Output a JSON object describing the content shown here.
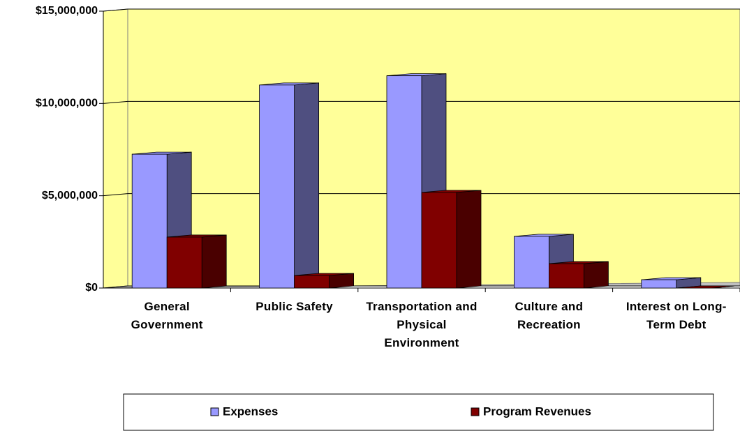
{
  "chart_data": {
    "type": "bar3d",
    "categories": [
      "General Government",
      "Public Safety",
      "Transportation and Physical Environment",
      "Culture and Recreation",
      "Interest on Long-Term Debt"
    ],
    "series": [
      {
        "name": "Expenses",
        "color": "#9999ff",
        "side_color": "#4f4f80",
        "values": [
          7250000,
          11000000,
          11500000,
          2800000,
          450000
        ]
      },
      {
        "name": "Program Revenues",
        "color": "#800000",
        "side_color": "#4a0000",
        "values": [
          2760000,
          680000,
          5180000,
          1320000,
          0
        ]
      }
    ],
    "ylim": [
      0,
      15000000
    ],
    "yticks": [
      {
        "value": 0,
        "label": "$0"
      },
      {
        "value": 5000000,
        "label": "$5,000,000"
      },
      {
        "value": 10000000,
        "label": "$10,000,000"
      },
      {
        "value": 15000000,
        "label": "$15,000,000"
      }
    ],
    "grid": true,
    "legend": "bottom",
    "wall_color": "#ffff99"
  }
}
